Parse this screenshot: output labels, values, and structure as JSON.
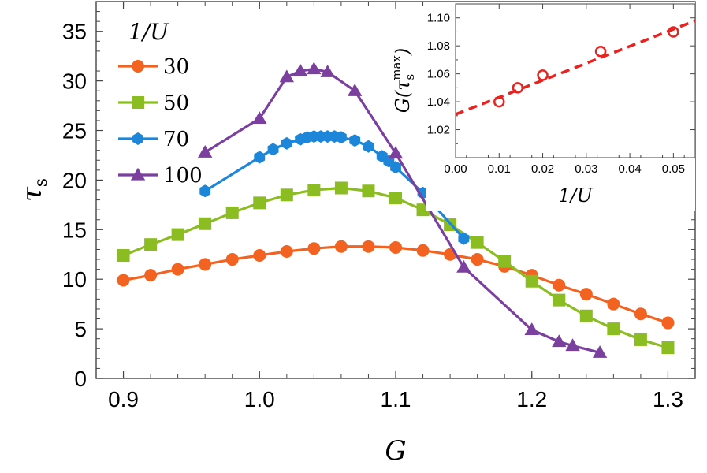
{
  "chart_data": [
    {
      "type": "line",
      "xlabel": "G",
      "ylabel": "τs",
      "xlim": [
        0.88,
        1.32
      ],
      "ylim": [
        0,
        38
      ],
      "xticks": [
        "0.9",
        "1.0",
        "1.1",
        "1.2",
        "1.3"
      ],
      "yticks": [
        "0",
        "5",
        "10",
        "15",
        "20",
        "25",
        "30",
        "35"
      ],
      "legend_title": "1/U",
      "legend_position": "top-left",
      "series": [
        {
          "name": "30",
          "color": "#f26322",
          "marker": "circle",
          "x": [
            0.9,
            0.92,
            0.94,
            0.96,
            0.98,
            1.0,
            1.02,
            1.04,
            1.06,
            1.08,
            1.1,
            1.12,
            1.14,
            1.16,
            1.18,
            1.2,
            1.22,
            1.24,
            1.26,
            1.28,
            1.3
          ],
          "y": [
            9.9,
            10.4,
            11.0,
            11.5,
            12.0,
            12.4,
            12.8,
            13.1,
            13.3,
            13.3,
            13.2,
            12.9,
            12.5,
            12.0,
            11.3,
            10.4,
            9.4,
            8.5,
            7.5,
            6.5,
            5.6
          ]
        },
        {
          "name": "50",
          "color": "#8bbc21",
          "marker": "square",
          "x": [
            0.9,
            0.92,
            0.94,
            0.96,
            0.98,
            1.0,
            1.02,
            1.04,
            1.06,
            1.08,
            1.1,
            1.12,
            1.14,
            1.16,
            1.18,
            1.2,
            1.22,
            1.24,
            1.26,
            1.28,
            1.3
          ],
          "y": [
            12.4,
            13.5,
            14.5,
            15.6,
            16.7,
            17.7,
            18.5,
            19.0,
            19.2,
            18.9,
            18.2,
            17.0,
            15.5,
            13.7,
            11.8,
            9.8,
            7.9,
            6.3,
            5.0,
            3.9,
            3.1
          ]
        },
        {
          "name": "70",
          "color": "#1d86d8",
          "marker": "hexagon",
          "x": [
            0.96,
            1.0,
            1.01,
            1.02,
            1.03,
            1.035,
            1.04,
            1.045,
            1.05,
            1.055,
            1.06,
            1.07,
            1.08,
            1.09,
            1.095,
            1.1,
            1.12,
            1.15
          ],
          "y": [
            18.9,
            22.3,
            23.1,
            23.7,
            24.1,
            24.3,
            24.4,
            24.4,
            24.4,
            24.4,
            24.3,
            24.0,
            23.4,
            22.4,
            21.9,
            21.3,
            18.7,
            14.1
          ]
        },
        {
          "name": "100",
          "color": "#7b3f9e",
          "marker": "triangle",
          "x": [
            0.96,
            1.0,
            1.02,
            1.03,
            1.04,
            1.05,
            1.07,
            1.1,
            1.15,
            1.2,
            1.22,
            1.23,
            1.25
          ],
          "y": [
            22.8,
            26.2,
            30.4,
            31.0,
            31.2,
            30.9,
            29.0,
            22.7,
            11.2,
            4.9,
            3.7,
            3.3,
            2.6
          ]
        }
      ]
    },
    {
      "type": "scatter",
      "xlabel": "1/U",
      "ylabel": "G(τs^max)",
      "ylabel_main": "G(τ",
      "ylabel_sub": "s",
      "ylabel_sup": "max",
      "ylabel_end": ")",
      "xlim": [
        0.0,
        0.055
      ],
      "ylim": [
        1.0,
        1.11
      ],
      "xticks": [
        "0.00",
        "0.01",
        "0.02",
        "0.03",
        "0.04",
        "0.05"
      ],
      "yticks": [
        "1.02",
        "1.04",
        "1.06",
        "1.08",
        "1.10"
      ],
      "points": {
        "color": "#e8231f",
        "marker": "open-circle",
        "x": [
          0.01,
          0.01428,
          0.02,
          0.0333,
          0.05
        ],
        "y": [
          1.04,
          1.05,
          1.059,
          1.076,
          1.09
        ]
      },
      "fit": {
        "color": "#e8231f",
        "style": "dashed",
        "x": [
          0.0,
          0.055
        ],
        "y": [
          1.031,
          1.098
        ]
      }
    }
  ]
}
